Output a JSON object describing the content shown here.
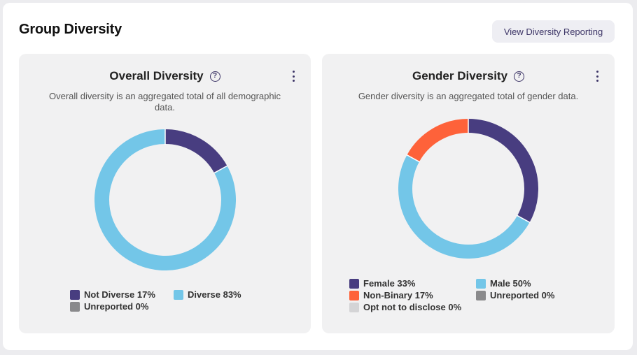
{
  "header": {
    "title": "Group Diversity",
    "report_button": "View Diversity Reporting"
  },
  "overall": {
    "title": "Overall Diversity",
    "help_symbol": "?",
    "description": "Overall diversity is an aggregated total of all demographic data.",
    "legend": [
      {
        "label": "Not Diverse 17%",
        "color": "#483d80"
      },
      {
        "label": "Diverse 83%",
        "color": "#73c6e8"
      },
      {
        "label": "Unreported 0%",
        "color": "#8a8a8c"
      }
    ]
  },
  "gender": {
    "title": "Gender Diversity",
    "help_symbol": "?",
    "description": "Gender diversity is an aggregated total of gender data.",
    "legend": [
      {
        "label": "Female 33%",
        "color": "#483d80"
      },
      {
        "label": "Male 50%",
        "color": "#73c6e8"
      },
      {
        "label": "Non-Binary 17%",
        "color": "#fe623a"
      },
      {
        "label": "Unreported 0%",
        "color": "#8a8a8c"
      },
      {
        "label": "Opt not to disclose 0%",
        "color": "#d4d4d6"
      }
    ]
  },
  "chart_data": [
    {
      "type": "pie",
      "title": "Overall Diversity",
      "categories": [
        "Not Diverse",
        "Diverse",
        "Unreported"
      ],
      "values": [
        17,
        83,
        0
      ],
      "colors": [
        "#483d80",
        "#73c6e8",
        "#8a8a8c"
      ],
      "donut": true
    },
    {
      "type": "pie",
      "title": "Gender Diversity",
      "categories": [
        "Female",
        "Male",
        "Non-Binary",
        "Unreported",
        "Opt not to disclose"
      ],
      "values": [
        33,
        50,
        17,
        0,
        0
      ],
      "colors": [
        "#483d80",
        "#73c6e8",
        "#fe623a",
        "#8a8a8c",
        "#d4d4d6"
      ],
      "donut": true
    }
  ]
}
